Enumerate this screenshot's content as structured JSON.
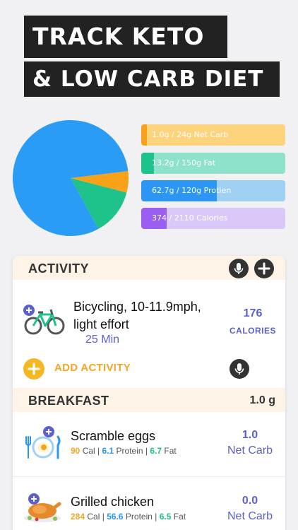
{
  "header": {
    "line1": "TRACK KETO",
    "line2": "& LOW CARB DIET"
  },
  "macros": [
    {
      "label": "1.0g / 24g Net Carb",
      "value": 1.0,
      "goal": 24,
      "color": "#f8a21a"
    },
    {
      "label": "13.2g / 150g  Fat",
      "value": 13.2,
      "goal": 150,
      "color": "#1ec28b"
    },
    {
      "label": "62.7g / 120g Protien",
      "value": 62.7,
      "goal": 120,
      "color": "#2b96f3"
    },
    {
      "label": "374 / 2110 Calories",
      "value": 374,
      "goal": 2110,
      "color": "#9a5ef0"
    }
  ],
  "pie": {
    "slices": [
      {
        "name": "protein",
        "value": 81,
        "color": "#2b9cf5"
      },
      {
        "name": "fat",
        "value": 13,
        "color": "#1ec28b"
      },
      {
        "name": "carb",
        "value": 6,
        "color": "#f8a21a"
      }
    ]
  },
  "activity": {
    "title": "ACTIVITY",
    "item_title_line1": "Bicycling, 10-11.9mph,",
    "item_title_line2": "light effort",
    "duration": "25 Min",
    "calories": "176",
    "calories_label": "CALORIES",
    "add_label": "ADD ACTIVITY"
  },
  "breakfast": {
    "title": "BREAKFAST",
    "total": "1.0 g",
    "items": [
      {
        "name": "Scramble eggs",
        "cal": "90",
        "cal_label": "Cal",
        "protein": "6.1",
        "protein_label": "Protein",
        "fat": "6.7",
        "fat_label": "Fat",
        "carb": "1.0",
        "carb_label": "Net Carb"
      },
      {
        "name": "Grilled chicken",
        "cal": "284",
        "cal_label": "Cal",
        "protein": "56.6",
        "protein_label": "Protein",
        "fat": "6.5",
        "fat_label": "Fat",
        "carb": "0.0",
        "carb_label": "Net Carb"
      }
    ]
  },
  "icons": [
    "mic-icon",
    "plus-icon",
    "bicycle-icon",
    "plate-icon",
    "chicken-icon"
  ]
}
